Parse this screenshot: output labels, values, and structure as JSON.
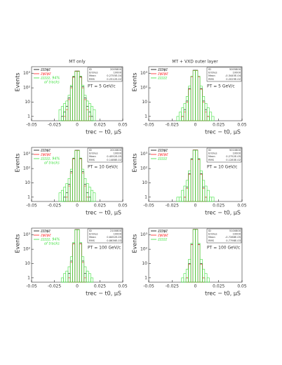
{
  "column_titles": [
    "MT only",
    "MT + VXD outer layer"
  ],
  "chart_data": [
    {
      "type": "histogram",
      "xlabel": "trec − t0, μS",
      "ylabel": "Events",
      "annotation": "PT = 5 GeV/c",
      "legend_note": "of tracks",
      "stats": [
        {
          "label": "ID",
          "value": "2005800"
        },
        {
          "label": "Entries",
          "value": "10000"
        },
        {
          "label": "Mean",
          "value": "0.2755E-04"
        },
        {
          "label": "RMS",
          "value": "0.2512E-02"
        }
      ],
      "bins": [
        -0.02,
        -0.0175,
        -0.015,
        -0.0125,
        -0.01,
        -0.0075,
        -0.005,
        -0.0025,
        0,
        0.0025,
        0.005,
        0.0075,
        0.01,
        0.0125,
        0.015,
        0.0175,
        0.02
      ],
      "series": [
        {
          "name": "zzzφz",
          "color": "#000000",
          "values": [
            0,
            1,
            2,
            5,
            20,
            120,
            600,
            1500,
            1500,
            600,
            120,
            20,
            5,
            2,
            1,
            0
          ]
        },
        {
          "name": "zφzφz",
          "color": "#ff2020",
          "values": [
            0,
            0,
            1,
            3,
            15,
            100,
            550,
            1450,
            1450,
            550,
            100,
            15,
            3,
            1,
            0,
            0
          ]
        },
        {
          "name": "zzzzz, 94%",
          "color": "#40e040",
          "values": [
            3,
            5,
            8,
            12,
            30,
            150,
            650,
            1400,
            1400,
            650,
            150,
            30,
            12,
            8,
            5,
            3
          ]
        }
      ],
      "xlim": [
        -0.05,
        0.05
      ],
      "xticks": [
        -0.05,
        -0.025,
        0,
        0.025,
        0.05
      ],
      "ylim": [
        0.5,
        3000
      ],
      "log_scale": true,
      "yticks": [
        1,
        10,
        {
          "value": 100,
          "label": "10²"
        },
        {
          "value": 1000,
          "label": "10³"
        }
      ]
    },
    {
      "type": "histogram",
      "xlabel": "trec − t0, μS",
      "ylabel": "Events",
      "annotation": "PT = 5 GeV/c",
      "stats": [
        {
          "label": "ID",
          "value": "5005800"
        },
        {
          "label": "Entries",
          "value": "10000"
        },
        {
          "label": "Mean",
          "value": "-0.3445E-04"
        },
        {
          "label": "RMS",
          "value": "0.2029E-02"
        }
      ],
      "bins": [
        -0.02,
        -0.0175,
        -0.015,
        -0.0125,
        -0.01,
        -0.0075,
        -0.005,
        -0.0025,
        0,
        0.0025,
        0.005,
        0.0075,
        0.01,
        0.0125,
        0.015,
        0.0175,
        0.02
      ],
      "series": [
        {
          "name": "zzzφz",
          "color": "#000000",
          "values": [
            0,
            0,
            1,
            3,
            12,
            90,
            620,
            1700,
            1700,
            620,
            90,
            12,
            3,
            1,
            0,
            0
          ]
        },
        {
          "name": "zφzφz",
          "color": "#ff2020",
          "values": [
            0,
            0,
            1,
            2,
            10,
            80,
            600,
            1650,
            1650,
            600,
            80,
            10,
            2,
            1,
            0,
            0
          ]
        },
        {
          "name": "zzzzz",
          "color": "#40e040",
          "values": [
            1,
            2,
            4,
            8,
            25,
            130,
            640,
            1600,
            1600,
            640,
            130,
            25,
            8,
            4,
            2,
            1
          ]
        }
      ],
      "xlim": [
        -0.05,
        0.05
      ],
      "xticks": [
        -0.05,
        -0.025,
        0,
        0.025,
        0.05
      ],
      "ylim": [
        0.5,
        3000
      ],
      "log_scale": true,
      "yticks": [
        1,
        10,
        {
          "value": 100,
          "label": "10²"
        },
        {
          "value": 1000,
          "label": "10³"
        }
      ]
    },
    {
      "type": "histogram",
      "xlabel": "trec − t0, μS",
      "ylabel": "Events",
      "annotation": "PT = 10 GeV/c",
      "legend_note": "of tracks",
      "stats": [
        {
          "label": "ID",
          "value": "2010800"
        },
        {
          "label": "Entries",
          "value": "10000"
        },
        {
          "label": "Mean",
          "value": "0.4552E-05"
        },
        {
          "label": "RMS",
          "value": "0.1488E-02"
        }
      ],
      "bins": [
        -0.02,
        -0.0175,
        -0.015,
        -0.0125,
        -0.01,
        -0.0075,
        -0.005,
        -0.0025,
        0,
        0.0025,
        0.005,
        0.0075,
        0.01,
        0.0125,
        0.015,
        0.0175,
        0.02
      ],
      "series": [
        {
          "name": "zzzφz",
          "color": "#000000",
          "values": [
            0,
            0,
            1,
            2,
            8,
            60,
            500,
            1900,
            1900,
            500,
            60,
            8,
            2,
            1,
            0,
            0
          ]
        },
        {
          "name": "zφzφz",
          "color": "#ff2020",
          "values": [
            0,
            0,
            0,
            1,
            6,
            50,
            480,
            1850,
            1850,
            480,
            50,
            6,
            1,
            0,
            0,
            0
          ]
        },
        {
          "name": "zzzzz, 94%",
          "color": "#40e040",
          "values": [
            2,
            3,
            5,
            9,
            20,
            90,
            540,
            1800,
            1800,
            540,
            90,
            20,
            9,
            5,
            3,
            2
          ]
        }
      ],
      "xlim": [
        -0.05,
        0.05
      ],
      "xticks": [
        -0.05,
        -0.025,
        0,
        0.025,
        0.05
      ],
      "ylim": [
        0.5,
        3000
      ],
      "log_scale": true,
      "yticks": [
        1,
        10,
        {
          "value": 100,
          "label": "10²"
        },
        {
          "value": 1000,
          "label": "10³"
        }
      ]
    },
    {
      "type": "histogram",
      "xlabel": "trec − t0, μS",
      "ylabel": "Events",
      "annotation": "PT = 10 GeV/c",
      "stats": [
        {
          "label": "ID",
          "value": "5010800"
        },
        {
          "label": "Entries",
          "value": "10000"
        },
        {
          "label": "Mean",
          "value": "0.2752E-05"
        },
        {
          "label": "RMS",
          "value": "0.1283E-02"
        }
      ],
      "bins": [
        -0.02,
        -0.0175,
        -0.015,
        -0.0125,
        -0.01,
        -0.0075,
        -0.005,
        -0.0025,
        0,
        0.0025,
        0.005,
        0.0075,
        0.01,
        0.0125,
        0.015,
        0.0175,
        0.02
      ],
      "series": [
        {
          "name": "zzzφz",
          "color": "#000000",
          "values": [
            0,
            0,
            0,
            1,
            5,
            45,
            450,
            2000,
            2000,
            450,
            45,
            5,
            1,
            0,
            0,
            0
          ]
        },
        {
          "name": "zφzφz",
          "color": "#ff2020",
          "values": [
            0,
            0,
            0,
            1,
            4,
            40,
            430,
            1950,
            1950,
            430,
            40,
            4,
            1,
            0,
            0,
            0
          ]
        },
        {
          "name": "zzzzz",
          "color": "#40e040",
          "values": [
            1,
            1,
            3,
            6,
            15,
            70,
            500,
            1900,
            1900,
            500,
            70,
            15,
            6,
            3,
            1,
            1
          ]
        }
      ],
      "xlim": [
        -0.05,
        0.05
      ],
      "xticks": [
        -0.05,
        -0.025,
        0,
        0.025,
        0.05
      ],
      "ylim": [
        0.5,
        3000
      ],
      "log_scale": true,
      "yticks": [
        1,
        10,
        {
          "value": 100,
          "label": "10²"
        },
        {
          "value": 1000,
          "label": "10³"
        }
      ]
    },
    {
      "type": "histogram",
      "xlabel": "trec − t0, μS",
      "ylabel": "Events",
      "annotation": "PT = 100 GeV/c",
      "legend_note": "of tracks",
      "stats": [
        {
          "label": "ID",
          "value": "2100800"
        },
        {
          "label": "Entries",
          "value": "10000"
        },
        {
          "label": "Mean",
          "value": "0.8452E-05"
        },
        {
          "label": "RMS",
          "value": "0.8636E-03"
        }
      ],
      "bins": [
        -0.02,
        -0.0175,
        -0.015,
        -0.0125,
        -0.01,
        -0.0075,
        -0.005,
        -0.0025,
        0,
        0.0025,
        0.005,
        0.0075,
        0.01,
        0.0125,
        0.015,
        0.0175,
        0.02
      ],
      "series": [
        {
          "name": "zzzφz",
          "color": "#000000",
          "values": [
            0,
            0,
            0,
            0,
            2,
            15,
            250,
            2400,
            2400,
            250,
            15,
            2,
            0,
            0,
            0,
            0
          ]
        },
        {
          "name": "zφzφz",
          "color": "#ff2020",
          "values": [
            0,
            0,
            0,
            0,
            1,
            12,
            240,
            2350,
            2350,
            240,
            12,
            1,
            0,
            0,
            0,
            0
          ]
        },
        {
          "name": "zzzzz, 94%",
          "color": "#40e040",
          "values": [
            0,
            1,
            2,
            3,
            6,
            30,
            300,
            2300,
            2300,
            300,
            30,
            6,
            3,
            2,
            1,
            0
          ]
        }
      ],
      "xlim": [
        -0.05,
        0.05
      ],
      "xticks": [
        -0.05,
        -0.025,
        0,
        0.025,
        0.05
      ],
      "ylim": [
        0.5,
        3000
      ],
      "log_scale": true,
      "yticks": [
        1,
        10,
        {
          "value": 100,
          "label": "10²"
        },
        {
          "value": 1000,
          "label": "10³"
        }
      ]
    },
    {
      "type": "histogram",
      "xlabel": "trec − t0, μS",
      "ylabel": "Events",
      "annotation": "PT = 100 GeV/c",
      "stats": [
        {
          "label": "ID",
          "value": "5100800"
        },
        {
          "label": "Entries",
          "value": "10000"
        },
        {
          "label": "Mean",
          "value": "-0.7288E-05"
        },
        {
          "label": "RMS",
          "value": "0.7798E-03"
        }
      ],
      "bins": [
        -0.02,
        -0.0175,
        -0.015,
        -0.0125,
        -0.01,
        -0.0075,
        -0.005,
        -0.0025,
        0,
        0.0025,
        0.005,
        0.0075,
        0.01,
        0.0125,
        0.015,
        0.0175,
        0.02
      ],
      "series": [
        {
          "name": "zzzφz",
          "color": "#000000",
          "values": [
            0,
            0,
            0,
            0,
            1,
            10,
            220,
            2500,
            2500,
            220,
            10,
            1,
            0,
            0,
            0,
            0
          ]
        },
        {
          "name": "zφzφz",
          "color": "#ff2020",
          "values": [
            0,
            0,
            0,
            0,
            1,
            9,
            210,
            2450,
            2450,
            210,
            9,
            1,
            0,
            0,
            0,
            0
          ]
        },
        {
          "name": "zzzzz",
          "color": "#40e040",
          "values": [
            0,
            0,
            1,
            2,
            4,
            20,
            260,
            2400,
            2400,
            260,
            20,
            4,
            2,
            1,
            0,
            0
          ]
        }
      ],
      "xlim": [
        -0.05,
        0.05
      ],
      "xticks": [
        -0.05,
        -0.025,
        0,
        0.025,
        0.05
      ],
      "ylim": [
        0.5,
        3000
      ],
      "log_scale": true,
      "yticks": [
        1,
        10,
        {
          "value": 100,
          "label": "10²"
        },
        {
          "value": 1000,
          "label": "10³"
        }
      ]
    }
  ]
}
